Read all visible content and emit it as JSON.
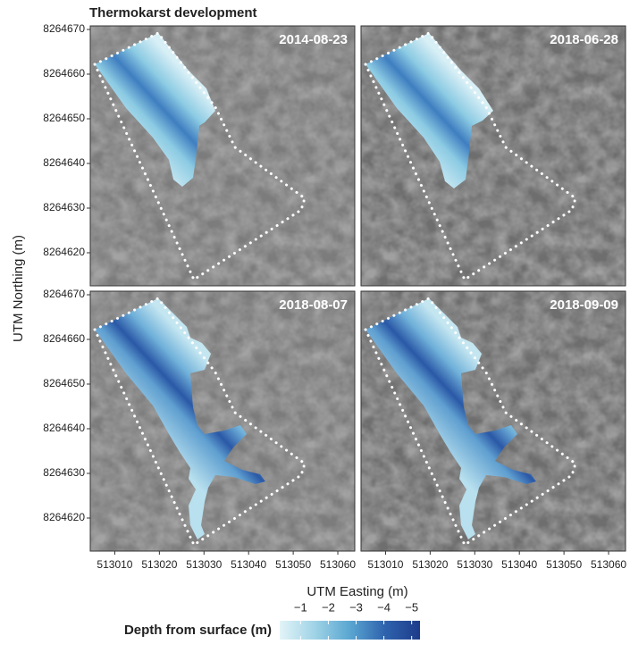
{
  "title": "Thermokarst development",
  "x_label": "UTM Easting (m)",
  "y_label": "UTM Northing (m)",
  "xlim": [
    513004.5,
    513063.8
  ],
  "xticks": [
    513010,
    513020,
    513030,
    513040,
    513050,
    513060
  ],
  "ylim": [
    8264612.6,
    8264670.8
  ],
  "yticks": [
    8264620,
    8264630,
    8264640,
    8264650,
    8264660,
    8264670
  ],
  "panels": [
    {
      "label": "2014-08-23"
    },
    {
      "label": "2018-06-28"
    },
    {
      "label": "2018-08-07"
    },
    {
      "label": "2018-09-09"
    }
  ],
  "legend": {
    "title": "Depth from surface (m)",
    "lim": [
      -0.25,
      -5.3
    ],
    "ticks": [
      {
        "value": -1,
        "label": "−1"
      },
      {
        "value": -2,
        "label": "−2"
      },
      {
        "value": -3,
        "label": "−3"
      },
      {
        "value": -4,
        "label": "−4"
      },
      {
        "value": -5,
        "label": "−5"
      }
    ],
    "colors": [
      "#e3f4f8",
      "#9fd3e6",
      "#5aa6d2",
      "#2f63ad",
      "#1d3b8a"
    ]
  }
}
